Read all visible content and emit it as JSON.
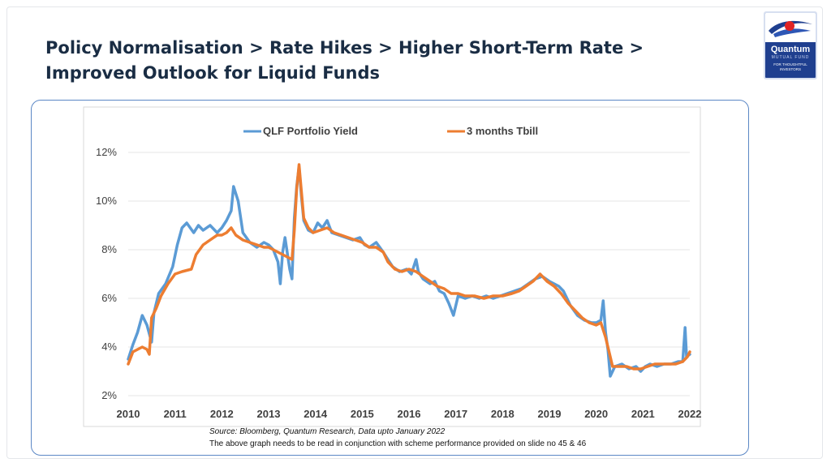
{
  "slide": {
    "title_line1": "Policy Normalisation > Rate Hikes > Higher Short-Term Rate >",
    "title_line2": "Improved Outlook for Liquid Funds",
    "source_note": "Source: Bloomberg, Quantum Research, Data upto January 2022",
    "disclaimer": "The above graph needs to be read in conjunction with scheme performance provided on slide no 45 & 46"
  },
  "logo": {
    "name": "Quantum",
    "subtitle": "MUTUAL FUND",
    "tagline_1": "FOR THOUGHTFUL",
    "tagline_2": "INVESTORS"
  },
  "colors": {
    "title": "#1a2d44",
    "series_qlf": "#5b9bd5",
    "series_tbill": "#ed7d31",
    "frame": "#5b87c5",
    "logo_bg": "#1f3f8f"
  },
  "chart_data": {
    "type": "line",
    "title": "",
    "xlabel": "",
    "ylabel": "",
    "xlim": [
      2010,
      2022
    ],
    "ylim": [
      2,
      12
    ],
    "y_ticks": [
      "2%",
      "4%",
      "6%",
      "8%",
      "10%",
      "12%"
    ],
    "x_ticks": [
      "2010",
      "2011",
      "2012",
      "2013",
      "2014",
      "2015",
      "2016",
      "2017",
      "2018",
      "2019",
      "2020",
      "2021",
      "2022"
    ],
    "grid": true,
    "legend_position": "top",
    "series": [
      {
        "name": "QLF Portfolio Yield",
        "points": [
          [
            2010.0,
            3.5
          ],
          [
            2010.1,
            4.1
          ],
          [
            2010.2,
            4.6
          ],
          [
            2010.3,
            5.3
          ],
          [
            2010.4,
            4.9
          ],
          [
            2010.5,
            4.2
          ],
          [
            2010.55,
            5.4
          ],
          [
            2010.65,
            6.2
          ],
          [
            2010.8,
            6.6
          ],
          [
            2010.95,
            7.3
          ],
          [
            2011.05,
            8.2
          ],
          [
            2011.15,
            8.9
          ],
          [
            2011.25,
            9.1
          ],
          [
            2011.4,
            8.7
          ],
          [
            2011.5,
            9.0
          ],
          [
            2011.6,
            8.8
          ],
          [
            2011.75,
            9.0
          ],
          [
            2011.9,
            8.7
          ],
          [
            2012.0,
            8.9
          ],
          [
            2012.1,
            9.2
          ],
          [
            2012.2,
            9.6
          ],
          [
            2012.25,
            10.6
          ],
          [
            2012.35,
            10.0
          ],
          [
            2012.45,
            8.7
          ],
          [
            2012.6,
            8.3
          ],
          [
            2012.75,
            8.1
          ],
          [
            2012.9,
            8.3
          ],
          [
            2013.0,
            8.2
          ],
          [
            2013.1,
            8.0
          ],
          [
            2013.2,
            7.5
          ],
          [
            2013.25,
            6.6
          ],
          [
            2013.3,
            7.9
          ],
          [
            2013.35,
            8.5
          ],
          [
            2013.45,
            7.2
          ],
          [
            2013.5,
            6.8
          ],
          [
            2013.55,
            9.3
          ],
          [
            2013.6,
            10.6
          ],
          [
            2013.65,
            11.4
          ],
          [
            2013.7,
            10.2
          ],
          [
            2013.75,
            9.2
          ],
          [
            2013.85,
            8.8
          ],
          [
            2013.95,
            8.7
          ],
          [
            2014.05,
            9.1
          ],
          [
            2014.15,
            8.9
          ],
          [
            2014.25,
            9.2
          ],
          [
            2014.35,
            8.7
          ],
          [
            2014.5,
            8.6
          ],
          [
            2014.65,
            8.5
          ],
          [
            2014.8,
            8.4
          ],
          [
            2014.95,
            8.5
          ],
          [
            2015.05,
            8.2
          ],
          [
            2015.15,
            8.1
          ],
          [
            2015.3,
            8.3
          ],
          [
            2015.45,
            7.9
          ],
          [
            2015.55,
            7.6
          ],
          [
            2015.65,
            7.3
          ],
          [
            2015.8,
            7.1
          ],
          [
            2015.95,
            7.2
          ],
          [
            2016.05,
            7.0
          ],
          [
            2016.15,
            7.6
          ],
          [
            2016.2,
            7.1
          ],
          [
            2016.3,
            6.8
          ],
          [
            2016.45,
            6.6
          ],
          [
            2016.55,
            6.7
          ],
          [
            2016.65,
            6.3
          ],
          [
            2016.75,
            6.2
          ],
          [
            2016.85,
            5.8
          ],
          [
            2016.95,
            5.3
          ],
          [
            2017.05,
            6.1
          ],
          [
            2017.2,
            6.0
          ],
          [
            2017.35,
            6.1
          ],
          [
            2017.5,
            6.0
          ],
          [
            2017.65,
            6.1
          ],
          [
            2017.8,
            6.0
          ],
          [
            2017.95,
            6.1
          ],
          [
            2018.1,
            6.2
          ],
          [
            2018.25,
            6.3
          ],
          [
            2018.4,
            6.4
          ],
          [
            2018.55,
            6.6
          ],
          [
            2018.7,
            6.8
          ],
          [
            2018.85,
            6.9
          ],
          [
            2019.0,
            6.7
          ],
          [
            2019.1,
            6.6
          ],
          [
            2019.2,
            6.5
          ],
          [
            2019.3,
            6.3
          ],
          [
            2019.45,
            5.7
          ],
          [
            2019.6,
            5.3
          ],
          [
            2019.75,
            5.1
          ],
          [
            2019.9,
            5.0
          ],
          [
            2020.0,
            5.0
          ],
          [
            2020.1,
            5.1
          ],
          [
            2020.15,
            5.9
          ],
          [
            2020.2,
            4.6
          ],
          [
            2020.25,
            3.9
          ],
          [
            2020.3,
            2.8
          ],
          [
            2020.4,
            3.2
          ],
          [
            2020.55,
            3.3
          ],
          [
            2020.7,
            3.1
          ],
          [
            2020.85,
            3.2
          ],
          [
            2020.95,
            3.0
          ],
          [
            2021.05,
            3.2
          ],
          [
            2021.15,
            3.3
          ],
          [
            2021.3,
            3.2
          ],
          [
            2021.45,
            3.3
          ],
          [
            2021.6,
            3.3
          ],
          [
            2021.75,
            3.4
          ],
          [
            2021.85,
            3.4
          ],
          [
            2021.9,
            4.8
          ],
          [
            2021.93,
            3.6
          ],
          [
            2022.0,
            3.7
          ]
        ]
      },
      {
        "name": "3 months Tbill",
        "points": [
          [
            2010.0,
            3.3
          ],
          [
            2010.1,
            3.8
          ],
          [
            2010.2,
            3.9
          ],
          [
            2010.3,
            4.0
          ],
          [
            2010.4,
            3.9
          ],
          [
            2010.45,
            3.7
          ],
          [
            2010.5,
            5.2
          ],
          [
            2010.6,
            5.6
          ],
          [
            2010.7,
            6.1
          ],
          [
            2010.85,
            6.6
          ],
          [
            2011.0,
            7.0
          ],
          [
            2011.15,
            7.1
          ],
          [
            2011.35,
            7.2
          ],
          [
            2011.45,
            7.8
          ],
          [
            2011.6,
            8.2
          ],
          [
            2011.75,
            8.4
          ],
          [
            2011.9,
            8.6
          ],
          [
            2012.0,
            8.6
          ],
          [
            2012.1,
            8.7
          ],
          [
            2012.2,
            8.9
          ],
          [
            2012.3,
            8.6
          ],
          [
            2012.45,
            8.4
          ],
          [
            2012.6,
            8.3
          ],
          [
            2012.75,
            8.2
          ],
          [
            2012.9,
            8.1
          ],
          [
            2013.0,
            8.1
          ],
          [
            2013.1,
            8.0
          ],
          [
            2013.2,
            7.9
          ],
          [
            2013.3,
            7.8
          ],
          [
            2013.4,
            7.7
          ],
          [
            2013.5,
            7.6
          ],
          [
            2013.55,
            8.8
          ],
          [
            2013.6,
            10.5
          ],
          [
            2013.65,
            11.5
          ],
          [
            2013.7,
            10.4
          ],
          [
            2013.75,
            9.3
          ],
          [
            2013.85,
            8.9
          ],
          [
            2013.95,
            8.7
          ],
          [
            2014.1,
            8.8
          ],
          [
            2014.25,
            8.9
          ],
          [
            2014.4,
            8.7
          ],
          [
            2014.55,
            8.6
          ],
          [
            2014.7,
            8.5
          ],
          [
            2014.85,
            8.4
          ],
          [
            2015.0,
            8.3
          ],
          [
            2015.15,
            8.1
          ],
          [
            2015.3,
            8.1
          ],
          [
            2015.45,
            7.9
          ],
          [
            2015.55,
            7.5
          ],
          [
            2015.7,
            7.2
          ],
          [
            2015.85,
            7.1
          ],
          [
            2016.0,
            7.2
          ],
          [
            2016.15,
            7.1
          ],
          [
            2016.3,
            6.9
          ],
          [
            2016.45,
            6.7
          ],
          [
            2016.6,
            6.5
          ],
          [
            2016.75,
            6.4
          ],
          [
            2016.9,
            6.2
          ],
          [
            2017.05,
            6.2
          ],
          [
            2017.2,
            6.1
          ],
          [
            2017.4,
            6.1
          ],
          [
            2017.6,
            6.0
          ],
          [
            2017.8,
            6.1
          ],
          [
            2018.0,
            6.1
          ],
          [
            2018.2,
            6.2
          ],
          [
            2018.35,
            6.3
          ],
          [
            2018.5,
            6.5
          ],
          [
            2018.65,
            6.7
          ],
          [
            2018.8,
            7.0
          ],
          [
            2018.95,
            6.7
          ],
          [
            2019.1,
            6.5
          ],
          [
            2019.25,
            6.2
          ],
          [
            2019.4,
            5.8
          ],
          [
            2019.55,
            5.5
          ],
          [
            2019.7,
            5.2
          ],
          [
            2019.85,
            5.0
          ],
          [
            2020.0,
            4.9
          ],
          [
            2020.1,
            5.0
          ],
          [
            2020.2,
            4.4
          ],
          [
            2020.3,
            3.6
          ],
          [
            2020.35,
            3.2
          ],
          [
            2020.5,
            3.2
          ],
          [
            2020.65,
            3.2
          ],
          [
            2020.8,
            3.1
          ],
          [
            2020.95,
            3.1
          ],
          [
            2021.1,
            3.2
          ],
          [
            2021.25,
            3.3
          ],
          [
            2021.4,
            3.3
          ],
          [
            2021.55,
            3.3
          ],
          [
            2021.7,
            3.3
          ],
          [
            2021.85,
            3.4
          ],
          [
            2021.95,
            3.6
          ],
          [
            2022.0,
            3.8
          ]
        ]
      }
    ]
  }
}
